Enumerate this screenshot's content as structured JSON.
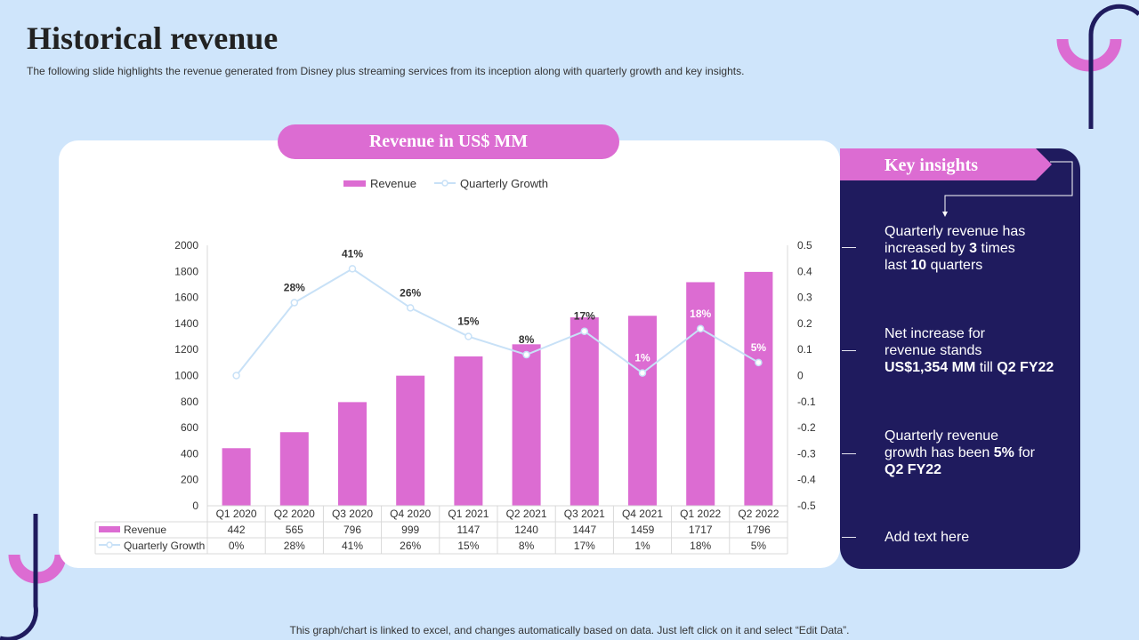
{
  "page": {
    "title": "Historical revenue",
    "subtitle": "The following slide highlights the revenue generated from Disney plus streaming services from its inception along with quarterly growth and key insights.",
    "footnote": "This graph/chart is linked to excel, and changes automatically based on data. Just left click on it and select “Edit Data”."
  },
  "chart_header": "Revenue in US$ MM",
  "insights": {
    "header": "Key insights",
    "items": [
      [
        {
          "t": "Quarterly revenue has"
        },
        {
          "t": "increased by "
        },
        {
          "t": "3",
          "b": true
        },
        {
          "t": " times"
        },
        {
          "t": "last "
        },
        {
          "t": "10",
          "b": true
        },
        {
          "t": " quarters"
        }
      ],
      [
        {
          "t": "Net increase for"
        },
        {
          "t": "revenue stands"
        },
        {
          "t": "US$1,354 MM",
          "b": true
        },
        {
          "t": " till "
        },
        {
          "t": "Q2 FY22",
          "b": true
        }
      ],
      [
        {
          "t": "Quarterly revenue"
        },
        {
          "t": "growth has been "
        },
        {
          "t": "5%",
          "b": true
        },
        {
          "t": " for"
        },
        {
          "t": "Q2 FY22",
          "b": true
        }
      ],
      [
        {
          "t": "Add text here"
        }
      ]
    ]
  },
  "colors": {
    "background": "#cfe5fb",
    "bar": "#dc6cd2",
    "line": "#c8e1f7",
    "panel": "#1f1b5e",
    "accent": "#dc6cd2"
  },
  "chart_data": {
    "type": "bar",
    "title": "Revenue in US$ MM",
    "categories": [
      "Q1 2020",
      "Q2 2020",
      "Q3 2020",
      "Q4 2020",
      "Q1 2021",
      "Q2 2021",
      "Q3 2021",
      "Q4 2021",
      "Q1 2022",
      "Q2 2022"
    ],
    "series": [
      {
        "name": "Revenue",
        "type": "bar",
        "axis": "left",
        "values": [
          442,
          565,
          796,
          999,
          1147,
          1240,
          1447,
          1459,
          1717,
          1796
        ],
        "table_labels": [
          "442",
          "565",
          "796",
          "999",
          "1147",
          "1240",
          "1447",
          "1459",
          "1717",
          "1796"
        ]
      },
      {
        "name": "Quarterly Growth",
        "type": "line",
        "axis": "right",
        "values": [
          0,
          0.28,
          0.41,
          0.26,
          0.15,
          0.08,
          0.17,
          0.01,
          0.18,
          0.05
        ],
        "labels": [
          "",
          "28%",
          "41%",
          "26%",
          "15%",
          "8%",
          "17%",
          "1%",
          "18%",
          "5%"
        ],
        "table_labels": [
          "0%",
          "28%",
          "41%",
          "26%",
          "15%",
          "8%",
          "17%",
          "1%",
          "18%",
          "5%"
        ]
      }
    ],
    "y_left": {
      "range": [
        0,
        2000
      ],
      "ticks": [
        "0",
        "200",
        "400",
        "600",
        "800",
        "1000",
        "1200",
        "1400",
        "1600",
        "1800",
        "2000"
      ]
    },
    "y_right": {
      "range": [
        -0.5,
        0.5
      ],
      "ticks": [
        "-0.5",
        "-0.4",
        "-0.3",
        "-0.2",
        "-0.1",
        "0",
        "0.1",
        "0.2",
        "0.3",
        "0.4",
        "0.5"
      ]
    },
    "legend": {
      "position": "top",
      "entries": [
        "Revenue",
        "Quarterly Growth"
      ]
    },
    "data_table": true
  }
}
